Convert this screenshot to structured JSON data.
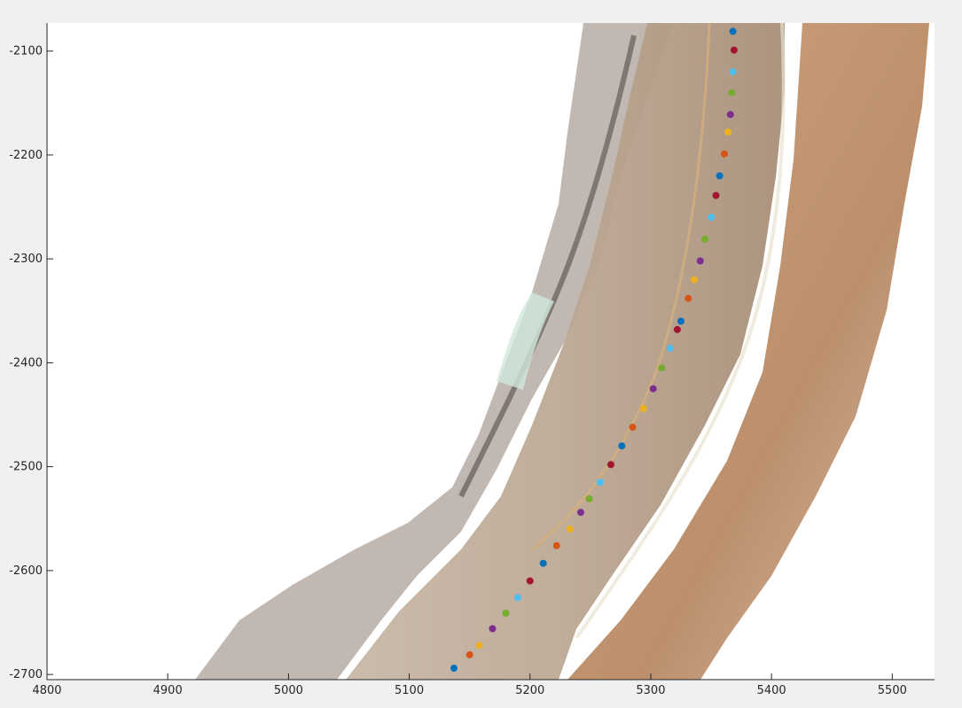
{
  "chart_data": {
    "type": "scatter",
    "title": "",
    "xlabel": "",
    "ylabel": "",
    "xlim": [
      4800,
      5535
    ],
    "ylim": [
      -2705,
      -2073
    ],
    "x_ticks": [
      4800,
      4900,
      5000,
      5100,
      5200,
      5300,
      5400,
      5500
    ],
    "y_ticks": [
      -2100,
      -2200,
      -2300,
      -2400,
      -2500,
      -2600,
      -2700
    ],
    "grid": false,
    "background_image": "aerial-road-mosaic",
    "point_colors": [
      "#0072bd",
      "#d95319",
      "#edb120",
      "#7e2f8e",
      "#77ac30",
      "#4dbeee",
      "#a2142f"
    ],
    "points": [
      {
        "x": 5137,
        "y": -2694
      },
      {
        "x": 5150,
        "y": -2681
      },
      {
        "x": 5158,
        "y": -2672
      },
      {
        "x": 5169,
        "y": -2656
      },
      {
        "x": 5180,
        "y": -2641
      },
      {
        "x": 5190,
        "y": -2626
      },
      {
        "x": 5200,
        "y": -2610
      },
      {
        "x": 5211,
        "y": -2593
      },
      {
        "x": 5222,
        "y": -2576
      },
      {
        "x": 5233,
        "y": -2560
      },
      {
        "x": 5242,
        "y": -2544
      },
      {
        "x": 5249,
        "y": -2531
      },
      {
        "x": 5258,
        "y": -2515
      },
      {
        "x": 5267,
        "y": -2498
      },
      {
        "x": 5276,
        "y": -2480
      },
      {
        "x": 5285,
        "y": -2462
      },
      {
        "x": 5294,
        "y": -2444
      },
      {
        "x": 5302,
        "y": -2425
      },
      {
        "x": 5309,
        "y": -2405
      },
      {
        "x": 5316,
        "y": -2386
      },
      {
        "x": 5322,
        "y": -2368
      },
      {
        "x": 5325,
        "y": -2360
      },
      {
        "x": 5331,
        "y": -2338
      },
      {
        "x": 5336,
        "y": -2320
      },
      {
        "x": 5341,
        "y": -2302
      },
      {
        "x": 5345,
        "y": -2281
      },
      {
        "x": 5350,
        "y": -2260
      },
      {
        "x": 5354,
        "y": -2239
      },
      {
        "x": 5357,
        "y": -2220
      },
      {
        "x": 5361,
        "y": -2199
      },
      {
        "x": 5364,
        "y": -2178
      },
      {
        "x": 5366,
        "y": -2161
      },
      {
        "x": 5367,
        "y": -2140
      },
      {
        "x": 5368,
        "y": -2120
      },
      {
        "x": 5369,
        "y": -2099
      },
      {
        "x": 5368,
        "y": -2081
      }
    ]
  }
}
